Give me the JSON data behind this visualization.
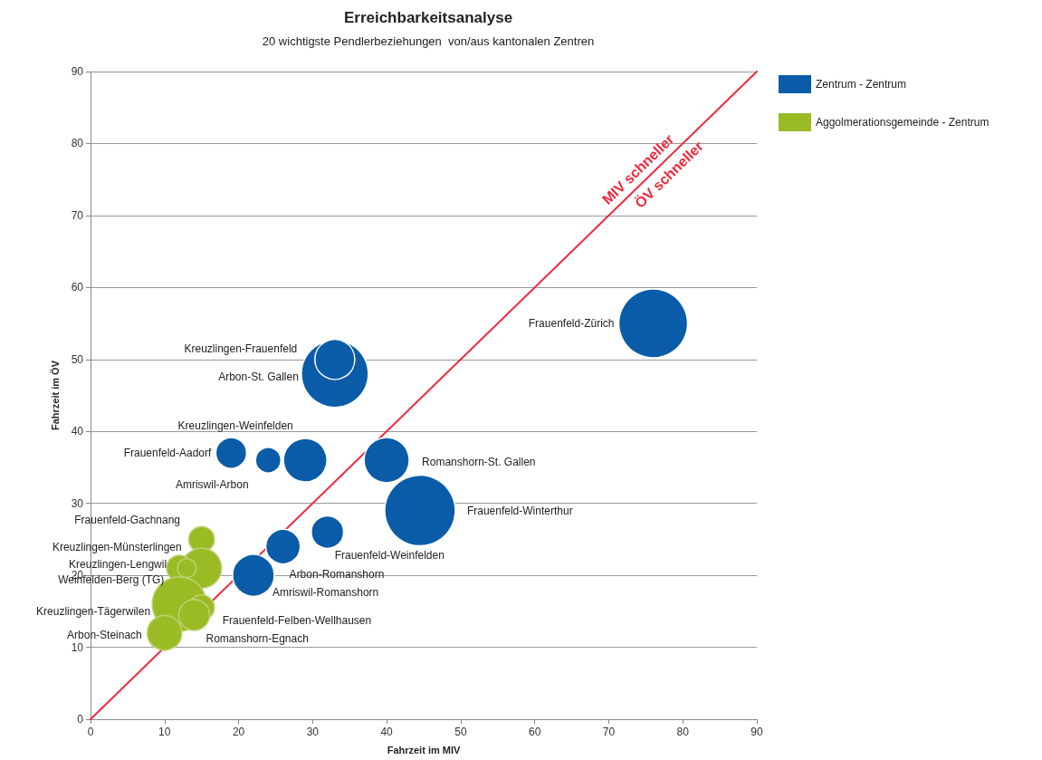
{
  "chart_data": {
    "type": "bubble",
    "title": "Erreichbarkeitsanalyse",
    "subtitle": "20 wichtigste Pendlerbeziehungen  von/aus kantonalen Zentren",
    "xlabel": "Fahrzeit im MIV",
    "ylabel": "Fahrzeit im ÖV",
    "xlim": [
      0,
      90
    ],
    "xticks": [
      0,
      10,
      20,
      30,
      40,
      50,
      60,
      70,
      80,
      90
    ],
    "ylim": [
      0,
      90
    ],
    "yticks": [
      0,
      10,
      20,
      30,
      40,
      50,
      60,
      70,
      80,
      90
    ],
    "grid": "y",
    "legend": "top right",
    "series": [
      {
        "name": "Zentrum - Zentrum",
        "color": "#0a5ca8",
        "x": [
          76,
          33,
          33,
          29,
          19,
          24,
          40,
          44.5,
          32,
          26,
          22
        ],
        "values": [
          55,
          48,
          50,
          36,
          37,
          36,
          36,
          29,
          26,
          24,
          20
        ],
        "sizes": [
          0.95,
          0.9,
          0.32,
          0.38,
          0.19,
          0.13,
          0.41,
          1,
          0.21,
          0.24,
          0.35
        ]
      },
      {
        "name": "Aggolmerationsgemeinde - Zentrum",
        "color": "#9bbb25",
        "x": [
          15,
          15,
          12,
          13,
          12,
          15,
          14,
          10
        ],
        "values": [
          25,
          21,
          21,
          21,
          16,
          15.5,
          14.5,
          12
        ],
        "sizes": [
          0.13,
          0.32,
          0.13,
          0.07,
          0.59,
          0.13,
          0.19,
          0.24
        ]
      },
      {
        "type": "line",
        "color": "#f0283c",
        "x": [
          0,
          90
        ],
        "values": [
          0,
          90
        ],
        "marker": "none",
        "line_style": "solid"
      }
    ],
    "annotations": [
      "Frauenfeld-Zürich",
      "Kreuzlingen-Frauenfeld",
      "Arbon-St. Gallen",
      "Kreuzlingen-Weinfelden",
      "Frauenfeld-Aadorf",
      "Amriswil-Arbon",
      "Romanshorn-St. Gallen",
      "Frauenfeld-Winterthur",
      "Frauenfeld-Weinfelden",
      "Arbon-Romanshorn",
      "Amriswil-Romanshorn",
      "Frauenfeld-Gachnang",
      "Kreuzlingen-Münsterlingen",
      "Kreuzlingen-Lengwil",
      "Weinfelden-Berg (TG)",
      "Kreuzlingen-Tägerwilen",
      "Frauenfeld-Felben-Wellhausen",
      "Romanshorn-Egnach",
      "Arbon-Steinach",
      "MIV schneller",
      "ÖV schneller"
    ]
  }
}
